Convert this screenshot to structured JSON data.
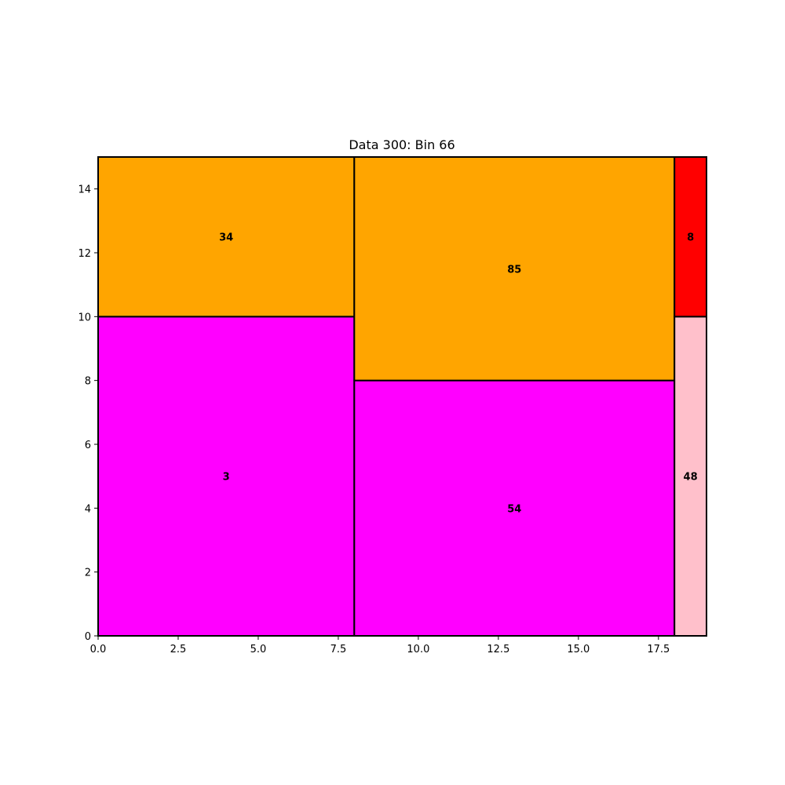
{
  "chart_data": {
    "type": "treemap",
    "title": "Data 300: Bin 66",
    "xlabel": "",
    "ylabel": "",
    "xlim": [
      0,
      19
    ],
    "ylim": [
      0,
      15
    ],
    "grid": false,
    "x_ticks": [
      "0.0",
      "2.5",
      "5.0",
      "7.5",
      "10.0",
      "12.5",
      "15.0",
      "17.5"
    ],
    "y_ticks": [
      "0",
      "2",
      "4",
      "6",
      "8",
      "10",
      "12",
      "14"
    ],
    "rectangles": [
      {
        "label": "3",
        "x": 0,
        "y": 0,
        "w": 8,
        "h": 10,
        "color": "#ff00ff"
      },
      {
        "label": "34",
        "x": 0,
        "y": 10,
        "w": 8,
        "h": 5,
        "color": "#ffa500"
      },
      {
        "label": "54",
        "x": 8,
        "y": 0,
        "w": 10,
        "h": 8,
        "color": "#ff00ff"
      },
      {
        "label": "85",
        "x": 8,
        "y": 8,
        "w": 10,
        "h": 7,
        "color": "#ffa500"
      },
      {
        "label": "48",
        "x": 18,
        "y": 0,
        "w": 1,
        "h": 10,
        "color": "#ffc0cb"
      },
      {
        "label": "8",
        "x": 18,
        "y": 10,
        "w": 1,
        "h": 5,
        "color": "#ff0000"
      }
    ]
  }
}
